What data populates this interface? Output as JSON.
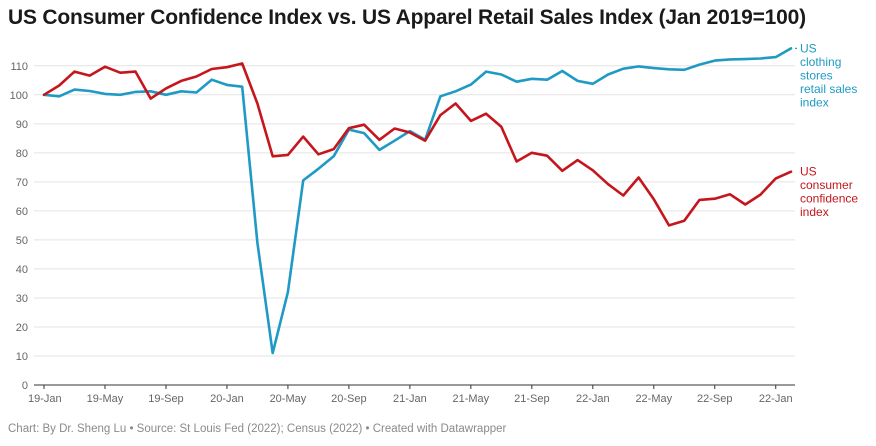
{
  "title": "US Consumer Confidence Index vs. US Apparel Retail Sales Index (Jan 2019=100)",
  "footer": "Chart: By Dr. Sheng Lu • Source: St Louis Fed (2022); Census (2022) • Created with Datawrapper",
  "chart_data": {
    "type": "line",
    "title": "US Consumer Confidence Index vs. US Apparel Retail Sales Index (Jan 2019=100)",
    "xlabel": "",
    "ylabel": "",
    "ylim": [
      0,
      116
    ],
    "yticks": [
      0,
      10,
      20,
      30,
      40,
      50,
      60,
      70,
      80,
      90,
      100,
      110
    ],
    "xticks": [
      "19-Jan",
      "19-May",
      "19-Sep",
      "20-Jan",
      "20-May",
      "20-Sep",
      "21-Jan",
      "21-May",
      "21-Sep",
      "22-Jan",
      "22-May",
      "22-Sep",
      "22-Jan"
    ],
    "grid": true,
    "legend": "inline-right",
    "x": [
      "2019-01",
      "2019-02",
      "2019-03",
      "2019-04",
      "2019-05",
      "2019-06",
      "2019-07",
      "2019-08",
      "2019-09",
      "2019-10",
      "2019-11",
      "2019-12",
      "2020-01",
      "2020-02",
      "2020-03",
      "2020-04",
      "2020-05",
      "2020-06",
      "2020-07",
      "2020-08",
      "2020-09",
      "2020-10",
      "2020-11",
      "2020-12",
      "2021-01",
      "2021-02",
      "2021-03",
      "2021-04",
      "2021-05",
      "2021-06",
      "2021-07",
      "2021-08",
      "2021-09",
      "2021-10",
      "2021-11",
      "2021-12",
      "2022-01",
      "2022-02",
      "2022-03",
      "2022-04",
      "2022-05",
      "2022-06",
      "2022-07",
      "2022-08",
      "2022-09",
      "2022-10",
      "2022-11",
      "2022-12",
      "2023-01",
      "2023-02"
    ],
    "series": [
      {
        "name": "US clothing stores retail sales index",
        "label_lines": [
          "US",
          "clothing",
          "stores",
          "retail sales",
          "index"
        ],
        "color": "#1e9ac4",
        "values": [
          100,
          99.5,
          101.8,
          101.3,
          100.3,
          100,
          101,
          101.2,
          100,
          101.2,
          100.8,
          105.2,
          103.4,
          102.8,
          49,
          11,
          32,
          70.5,
          74.5,
          78.8,
          88,
          86.8,
          81,
          84.2,
          87.5,
          84.5,
          99.5,
          101.2,
          103.5,
          108,
          107,
          104.5,
          105.5,
          105.2,
          108.2,
          104.8,
          103.8,
          107,
          109,
          109.8,
          109.2,
          108.8,
          108.6,
          110.4,
          111.8,
          112.2,
          112.3,
          112.5,
          113,
          116
        ]
      },
      {
        "name": "US consumer confidence index",
        "label_lines": [
          "US",
          "consumer",
          "confidence",
          "index"
        ],
        "color": "#c4161c",
        "values": [
          100,
          103.2,
          108,
          106.6,
          109.7,
          107.6,
          108,
          98.7,
          102.2,
          104.8,
          106.3,
          108.9,
          109.5,
          110.8,
          97,
          78.8,
          79.3,
          85.6,
          79.5,
          81.3,
          88.5,
          89.7,
          84.5,
          88.4,
          87,
          84.2,
          93,
          97,
          91,
          93.5,
          89,
          77,
          80,
          79,
          73.8,
          77.5,
          74,
          69.2,
          65.3,
          71.5,
          64,
          55,
          56.6,
          63.8,
          64.2,
          65.7,
          62.2,
          65.6,
          71.2,
          73.5
        ]
      }
    ]
  }
}
